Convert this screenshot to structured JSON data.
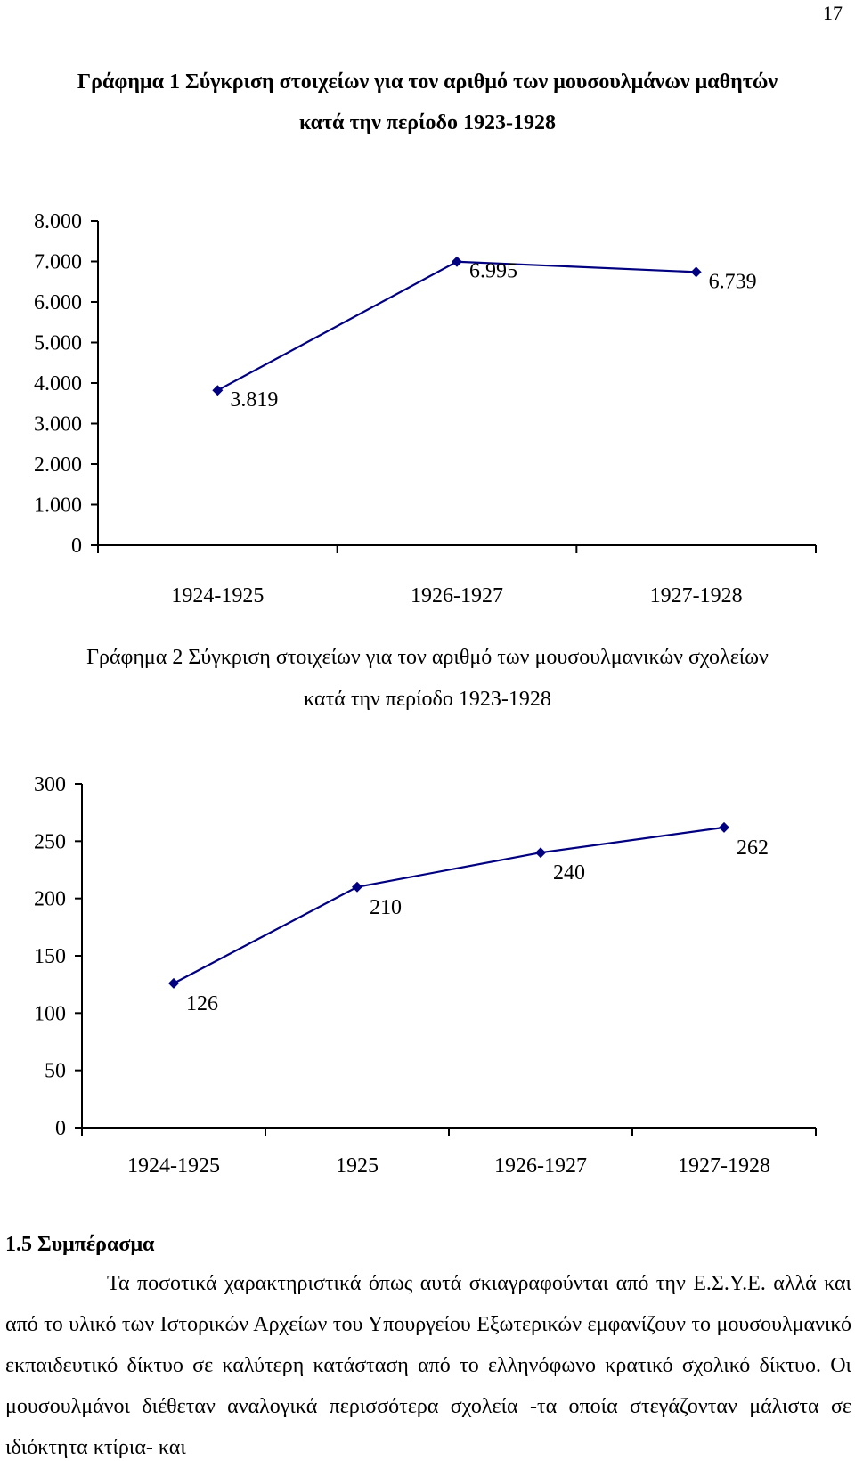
{
  "page": {
    "number": "17"
  },
  "chart_data": [
    {
      "type": "line",
      "title": "Γράφημα 1 Σύγκριση στοιχείων για τον αριθμό των μουσουλμάνων μαθητών",
      "subtitle": "κατά την περίοδο 1923-1928",
      "categories": [
        "1924-1925",
        "1926-1927",
        "1927-1928"
      ],
      "values": [
        3819,
        6995,
        6739
      ],
      "value_labels": [
        "3.819",
        "6.995",
        "6.739"
      ],
      "y_ticks": [
        0,
        1000,
        2000,
        3000,
        4000,
        5000,
        6000,
        7000,
        8000
      ],
      "y_tick_labels": [
        "0",
        "1.000",
        "2.000",
        "3.000",
        "4.000",
        "5.000",
        "6.000",
        "7.000",
        "8.000"
      ],
      "ylim": [
        0,
        8000
      ],
      "grid": false,
      "legend": false,
      "marker": "diamond",
      "color": "#000080"
    },
    {
      "type": "line",
      "title": "Γράφημα 2 Σύγκριση στοιχείων για τον αριθμό των μουσουλμανικών σχολείων",
      "subtitle": "κατά την περίοδο 1923-1928",
      "categories": [
        "1924-1925",
        "1925",
        "1926-1927",
        "1927-1928"
      ],
      "values": [
        126,
        210,
        240,
        262
      ],
      "value_labels": [
        "126",
        "210",
        "240",
        "262"
      ],
      "y_ticks": [
        0,
        50,
        100,
        150,
        200,
        250,
        300
      ],
      "y_tick_labels": [
        "0",
        "50",
        "100",
        "150",
        "200",
        "250",
        "300"
      ],
      "ylim": [
        0,
        300
      ],
      "grid": false,
      "legend": false,
      "marker": "diamond",
      "color": "#000080"
    }
  ],
  "section": {
    "heading": "1.5 Συμπέρασμα",
    "paragraph": "Τα ποσοτικά χαρακτηριστικά όπως αυτά σκιαγραφούνται από την Ε.Σ.Υ.Ε. αλλά και από το υλικό των Ιστορικών Αρχείων του Υπουργείου Εξωτερικών εμφανίζουν το μουσουλμανικό εκπαιδευτικό δίκτυο σε καλύτερη κατάσταση από το ελληνόφωνο κρατικό σχολικό δίκτυο. Οι μουσουλμάνοι διέθεταν αναλογικά περισσότερα σχολεία -τα οποία στεγάζονταν μάλιστα σε ιδιόκτητα κτίρια- και"
  }
}
